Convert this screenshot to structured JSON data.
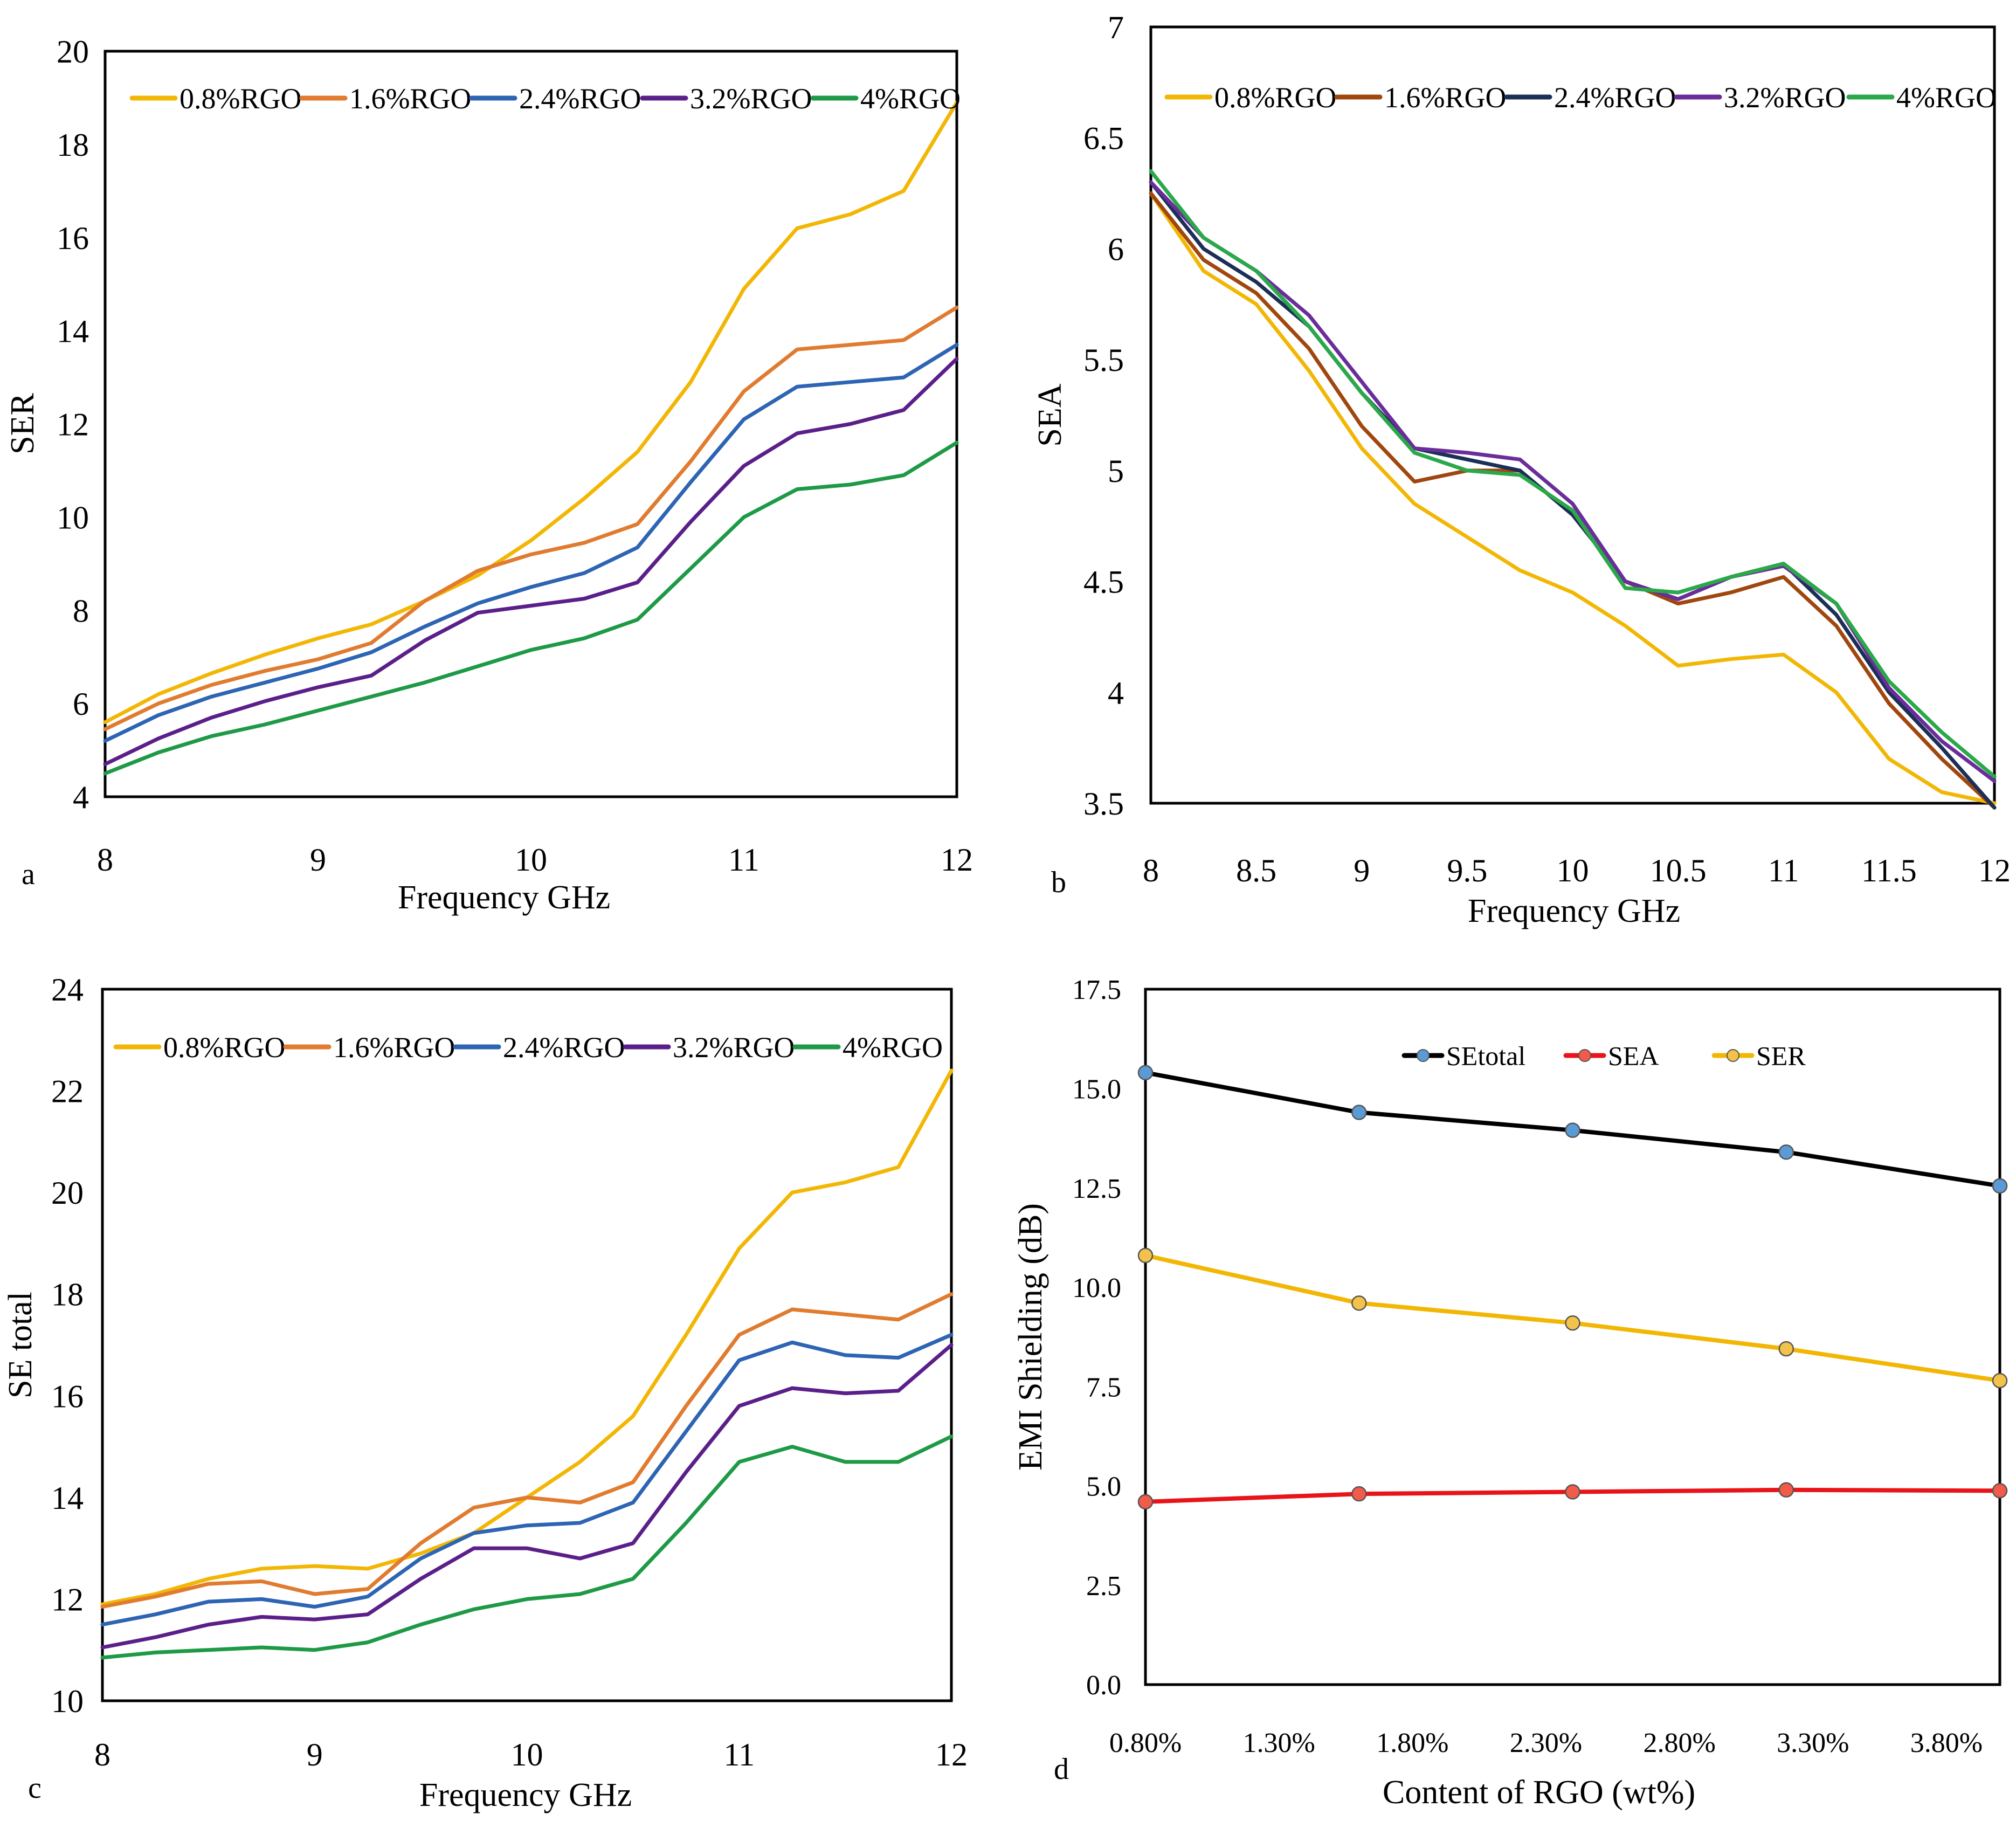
{
  "chart_data": [
    {
      "panel": "a",
      "type": "line",
      "xlabel": "Frequency GHz",
      "ylabel": "SER",
      "xlim": [
        8,
        12
      ],
      "ylim": [
        4,
        20
      ],
      "xticks": [
        8,
        9,
        10,
        11,
        12
      ],
      "yticks": [
        4,
        6,
        8,
        10,
        12,
        14,
        16,
        18,
        20
      ],
      "tick_labels_x": [
        "8",
        "9",
        "10",
        "11",
        "12"
      ],
      "tick_labels_y": [
        "4",
        "6",
        "8",
        "10",
        "12",
        "14",
        "16",
        "18",
        "20"
      ],
      "legend_position": "top",
      "x": [
        8.0,
        8.25,
        8.5,
        8.75,
        9.0,
        9.25,
        9.5,
        9.75,
        10.0,
        10.25,
        10.5,
        10.75,
        11.0,
        11.25,
        11.5,
        11.75,
        12.0
      ],
      "series": [
        {
          "name": "0.8%RGO",
          "color": "#f2b705",
          "values": [
            5.6,
            6.2,
            6.65,
            7.05,
            7.4,
            7.7,
            8.2,
            8.75,
            9.5,
            10.4,
            11.4,
            12.9,
            14.9,
            16.2,
            16.5,
            17.0,
            18.9
          ]
        },
        {
          "name": "1.6%RGO",
          "color": "#e07b2f",
          "values": [
            5.45,
            6.0,
            6.4,
            6.7,
            6.95,
            7.3,
            8.2,
            8.85,
            9.2,
            9.45,
            9.85,
            11.2,
            12.7,
            13.6,
            13.7,
            13.8,
            14.5
          ]
        },
        {
          "name": "2.4%RGO",
          "color": "#2d64b3",
          "values": [
            5.2,
            5.75,
            6.15,
            6.45,
            6.75,
            7.1,
            7.65,
            8.15,
            8.5,
            8.8,
            9.35,
            10.75,
            12.1,
            12.8,
            12.9,
            13.0,
            13.7
          ]
        },
        {
          "name": "3.2%RGO",
          "color": "#5b1f8a",
          "values": [
            4.7,
            5.25,
            5.7,
            6.05,
            6.35,
            6.6,
            7.35,
            7.95,
            8.1,
            8.25,
            8.6,
            9.9,
            11.1,
            11.8,
            12.0,
            12.3,
            13.4
          ]
        },
        {
          "name": "4%RGO",
          "color": "#1e9a47",
          "values": [
            4.5,
            4.95,
            5.3,
            5.55,
            5.85,
            6.15,
            6.45,
            6.8,
            7.15,
            7.4,
            7.8,
            8.9,
            10.0,
            10.6,
            10.7,
            10.9,
            11.6
          ]
        }
      ]
    },
    {
      "panel": "b",
      "type": "line",
      "xlabel": "Frequency GHz",
      "ylabel": "SEA",
      "xlim": [
        8,
        12
      ],
      "ylim": [
        3.5,
        7
      ],
      "xticks": [
        8,
        8.5,
        9,
        9.5,
        10,
        10.5,
        11,
        11.5,
        12
      ],
      "yticks": [
        3.5,
        4,
        4.5,
        5,
        5.5,
        6,
        6.5,
        7
      ],
      "tick_labels_x": [
        "8",
        "8.5",
        "9",
        "9.5",
        "10",
        "10.5",
        "11",
        "11.5",
        "12"
      ],
      "tick_labels_y": [
        "3.5",
        "4",
        "4.5",
        "5",
        "5.5",
        "6",
        "6.5",
        "7"
      ],
      "legend_position": "top",
      "x": [
        8.0,
        8.25,
        8.5,
        8.75,
        9.0,
        9.25,
        9.5,
        9.75,
        10.0,
        10.25,
        10.5,
        10.75,
        11.0,
        11.25,
        11.5,
        11.75,
        12.0
      ],
      "series": [
        {
          "name": "0.8%RGO",
          "color": "#f2b705",
          "values": [
            6.25,
            5.9,
            5.75,
            5.45,
            5.1,
            4.85,
            4.7,
            4.55,
            4.45,
            4.3,
            4.12,
            4.15,
            4.17,
            4.0,
            3.7,
            3.55,
            3.5
          ]
        },
        {
          "name": "1.6%RGO",
          "color": "#a0470f",
          "values": [
            6.25,
            5.95,
            5.8,
            5.55,
            5.2,
            4.95,
            5.0,
            5.0,
            4.8,
            4.5,
            4.4,
            4.45,
            4.52,
            4.3,
            3.95,
            3.7,
            3.48
          ]
        },
        {
          "name": "2.4%RGO",
          "color": "#1b2f57",
          "values": [
            6.3,
            6.0,
            5.85,
            5.65,
            5.35,
            5.1,
            5.05,
            5.0,
            4.8,
            4.5,
            4.42,
            4.52,
            4.58,
            4.35,
            4.0,
            3.75,
            3.48
          ]
        },
        {
          "name": "3.2%RGO",
          "color": "#6a2d9a",
          "values": [
            6.3,
            6.05,
            5.9,
            5.7,
            5.4,
            5.1,
            5.08,
            5.05,
            4.85,
            4.5,
            4.42,
            4.52,
            4.57,
            4.4,
            4.02,
            3.78,
            3.6
          ]
        },
        {
          "name": "4%RGO",
          "color": "#2aa84a",
          "values": [
            6.35,
            6.05,
            5.9,
            5.65,
            5.35,
            5.08,
            5.0,
            4.98,
            4.82,
            4.47,
            4.45,
            4.52,
            4.58,
            4.4,
            4.05,
            3.82,
            3.62
          ]
        }
      ]
    },
    {
      "panel": "c",
      "type": "line",
      "xlabel": "Frequency GHz",
      "ylabel": "SE total",
      "xlim": [
        8,
        12
      ],
      "ylim": [
        10,
        24
      ],
      "xticks": [
        8,
        9,
        10,
        11,
        12
      ],
      "yticks": [
        10,
        12,
        14,
        16,
        18,
        20,
        22,
        24
      ],
      "tick_labels_x": [
        "8",
        "9",
        "10",
        "11",
        "12"
      ],
      "tick_labels_y": [
        "10",
        "12",
        "14",
        "16",
        "18",
        "20",
        "22",
        "24"
      ],
      "legend_position": "top",
      "x": [
        8.0,
        8.25,
        8.5,
        8.75,
        9.0,
        9.25,
        9.5,
        9.75,
        10.0,
        10.25,
        10.5,
        10.75,
        11.0,
        11.25,
        11.5,
        11.75,
        12.0
      ],
      "series": [
        {
          "name": "0.8%RGO",
          "color": "#f2b705",
          "values": [
            11.9,
            12.1,
            12.4,
            12.6,
            12.65,
            12.6,
            12.9,
            13.3,
            14.0,
            14.7,
            15.6,
            17.2,
            18.9,
            20.0,
            20.2,
            20.5,
            22.4
          ]
        },
        {
          "name": "1.6%RGO",
          "color": "#e07b2f",
          "values": [
            11.85,
            12.05,
            12.3,
            12.35,
            12.1,
            12.2,
            13.1,
            13.8,
            14.0,
            13.9,
            14.3,
            15.8,
            17.2,
            17.7,
            17.6,
            17.5,
            18.0
          ]
        },
        {
          "name": "2.4%RGO",
          "color": "#2d64b3",
          "values": [
            11.5,
            11.7,
            11.95,
            12.0,
            11.85,
            12.05,
            12.8,
            13.3,
            13.45,
            13.5,
            13.9,
            15.3,
            16.7,
            17.05,
            16.8,
            16.75,
            17.2
          ]
        },
        {
          "name": "3.2%RGO",
          "color": "#5b1f8a",
          "values": [
            11.05,
            11.25,
            11.5,
            11.65,
            11.6,
            11.7,
            12.4,
            13.0,
            13.0,
            12.8,
            13.1,
            14.5,
            15.8,
            16.15,
            16.05,
            16.1,
            17.0
          ]
        },
        {
          "name": "4%RGO",
          "color": "#1e9a47",
          "values": [
            10.85,
            10.95,
            11.0,
            11.05,
            11.0,
            11.15,
            11.5,
            11.8,
            12.0,
            12.1,
            12.4,
            13.5,
            14.7,
            15.0,
            14.7,
            14.7,
            15.2
          ]
        }
      ]
    },
    {
      "panel": "d",
      "type": "line",
      "xlabel": "Content of RGO (wt%)",
      "ylabel": "EMI Shielding (dB)",
      "xlim": [
        0.8,
        4.0
      ],
      "ylim": [
        0,
        17.5
      ],
      "xticks": [
        0.8,
        1.3,
        1.8,
        2.3,
        2.8,
        3.3,
        3.8
      ],
      "yticks": [
        0,
        2.5,
        5,
        7.5,
        10,
        12.5,
        15,
        17.5
      ],
      "tick_labels_x": [
        "0.80%",
        "1.30%",
        "1.80%",
        "2.30%",
        "2.80%",
        "3.30%",
        "3.80%"
      ],
      "tick_labels_y": [
        "0.0",
        "2.5",
        "5.0",
        "7.5",
        "10.0",
        "12.5",
        "15.0",
        "17.5"
      ],
      "legend_position": "top",
      "x": [
        0.8,
        1.6,
        2.4,
        3.2,
        4.0
      ],
      "series": [
        {
          "name": "SEtotal",
          "color": "#000000",
          "marker_color": "#5b9bd5",
          "values": [
            15.4,
            14.4,
            13.95,
            13.4,
            12.55
          ]
        },
        {
          "name": "SEA",
          "color": "#e8141a",
          "marker_color": "#f25b4a",
          "values": [
            4.6,
            4.8,
            4.85,
            4.9,
            4.88
          ]
        },
        {
          "name": "SER",
          "color": "#f2b705",
          "marker_color": "#f2c24a",
          "values": [
            10.8,
            9.6,
            9.1,
            8.45,
            7.65
          ]
        }
      ]
    }
  ]
}
